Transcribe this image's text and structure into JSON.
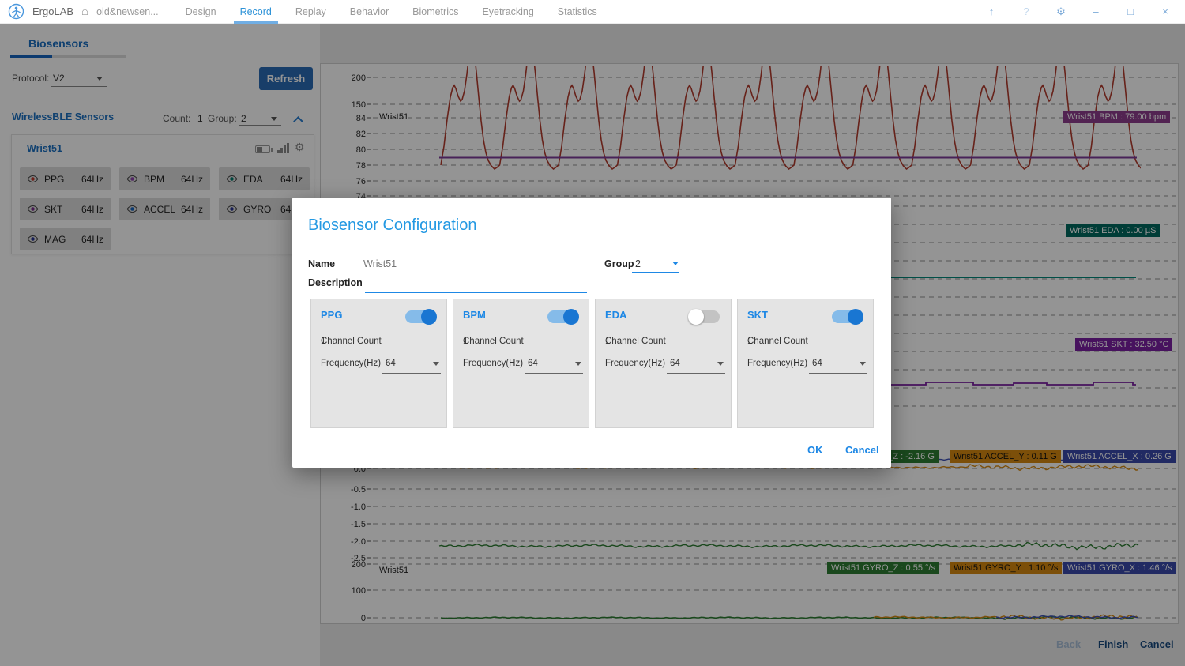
{
  "nav": {
    "app": "ErgoLAB",
    "project": "old&newsen...",
    "tabs": [
      {
        "label": "Design",
        "active": false
      },
      {
        "label": "Record",
        "active": true
      },
      {
        "label": "Replay",
        "active": false
      },
      {
        "label": "Behavior",
        "active": false
      },
      {
        "label": "Biometrics",
        "active": false
      },
      {
        "label": "Eyetracking",
        "active": false
      },
      {
        "label": "Statistics",
        "active": false
      }
    ],
    "window_icons": [
      {
        "name": "upload"
      },
      {
        "name": "help"
      },
      {
        "name": "settings"
      },
      {
        "name": "minimize"
      },
      {
        "name": "maximize"
      },
      {
        "name": "close"
      }
    ],
    "accent_color": "#2e93d8"
  },
  "sidebar": {
    "tab_label": "Biosensors",
    "protocol_label": "Protocol:",
    "protocol_value": "V2",
    "refresh_label": "Refresh",
    "header": {
      "title": "WirelessBLE Sensors",
      "count_label": "Count:",
      "count": "1",
      "group_label": "Group:",
      "group": "2"
    },
    "card": {
      "title": "Wrist51",
      "icons": [
        "battery-icon",
        "signal-icon",
        "gear-icon"
      ],
      "chips": [
        {
          "name": "PPG",
          "freq": "64Hz",
          "color": "#c0392b"
        },
        {
          "name": "BPM",
          "freq": "64Hz",
          "color": "#8e44ad"
        },
        {
          "name": "EDA",
          "freq": "64Hz",
          "color": "#00796b"
        },
        {
          "name": "SKT",
          "freq": "64Hz",
          "color": "#7b2d8e"
        },
        {
          "name": "ACCEL",
          "freq": "64Hz",
          "color": "#1565c0"
        },
        {
          "name": "GYRO",
          "freq": "64Hz",
          "color": "#283593"
        },
        {
          "name": "MAG",
          "freq": "64Hz",
          "color": "#283593"
        }
      ]
    }
  },
  "modal": {
    "title": "Biosensor Configuration",
    "name_label": "Name",
    "name_value": "Wrist51",
    "group_label": "Group",
    "group_value": "2",
    "description_label": "Description",
    "panels": [
      {
        "title": "PPG",
        "enabled": true,
        "channel_count_label": "Channel Count",
        "channel_count_value": "1",
        "frequency_label": "Frequency(Hz)",
        "frequency_value": "64"
      },
      {
        "title": "BPM",
        "enabled": true,
        "channel_count_label": "Channel Count",
        "channel_count_value": "1",
        "frequency_label": "Frequency(Hz)",
        "frequency_value": "64"
      },
      {
        "title": "EDA",
        "enabled": false,
        "channel_count_label": "Channel Count",
        "channel_count_value": "1",
        "frequency_label": "Frequency(Hz)",
        "frequency_value": "64"
      },
      {
        "title": "SKT",
        "enabled": true,
        "channel_count_label": "Channel Count",
        "channel_count_value": "1",
        "frequency_label": "Frequency(Hz)",
        "frequency_value": "64"
      }
    ],
    "ok_label": "OK",
    "cancel_label": "Cancel",
    "accent_color": "#1e88e5"
  },
  "footer": {
    "back": "Back",
    "finish": "Finish",
    "cancel": "Cancel"
  },
  "chart_data": [
    {
      "type": "line",
      "row": "PPG_BPM",
      "label": "Wrist51",
      "y_ticks": [
        "200",
        "150",
        "84",
        "82",
        "80",
        "78",
        "76",
        "74"
      ],
      "series": [
        {
          "name": "PPG",
          "color": "#b23c2e",
          "waveform": "periodic pulse wave, ~12 cycles visible, valleys ~78, peaks clipped above 200"
        },
        {
          "name": "BPM",
          "color": "#7d3c98",
          "value": 79.0
        }
      ],
      "badges": [
        {
          "series": "BPM",
          "text": "Wrist51 BPM : 79.00 bpm",
          "bg": "#8e3d8e",
          "fg": "#ffffff"
        }
      ]
    },
    {
      "type": "line",
      "row": "EDA",
      "series": [
        {
          "name": "EDA",
          "color": "#00897b",
          "value": 0.0
        }
      ],
      "badges": [
        {
          "series": "EDA",
          "text": "Wrist51 EDA : 0.00 µS",
          "bg": "#00695f",
          "fg": "#ffffff"
        }
      ]
    },
    {
      "type": "line",
      "row": "SKT",
      "series": [
        {
          "name": "SKT",
          "color": "#7b1fa2",
          "value": 32.5
        }
      ],
      "badges": [
        {
          "series": "SKT",
          "text": "Wrist51 SKT : 32.50 °C",
          "bg": "#7b1fa2",
          "fg": "#ffffff"
        }
      ]
    },
    {
      "type": "line",
      "row": "ACCEL",
      "y_ticks": [
        "0.0",
        "-0.5",
        "-1.0",
        "-1.5",
        "-2.0",
        "-2.5"
      ],
      "series": [
        {
          "name": "ACCEL_X",
          "color": "#3f51b5",
          "value": 0.26
        },
        {
          "name": "ACCEL_Y",
          "color": "#d68910",
          "value": 0.11
        },
        {
          "name": "ACCEL_Z",
          "color": "#2e7d32",
          "value": -2.16
        }
      ],
      "badges": [
        {
          "series": "ACCEL_Z",
          "text": "Wrist51 ACCEL_Z : -2.16 G",
          "bg": "#2e7d32",
          "fg": "#ffffff"
        },
        {
          "series": "ACCEL_Y",
          "text": "Wrist51 ACCEL_Y : 0.11 G",
          "bg": "#d68910",
          "fg": "#111111"
        },
        {
          "series": "ACCEL_X",
          "text": "Wrist51 ACCEL_X : 0.26 G",
          "bg": "#3949ab",
          "fg": "#ffffff"
        }
      ]
    },
    {
      "type": "line",
      "row": "GYRO",
      "label": "Wrist51",
      "y_ticks": [
        "200",
        "100",
        "0"
      ],
      "series": [
        {
          "name": "GYRO_X",
          "color": "#3f51b5",
          "value": 1.46
        },
        {
          "name": "GYRO_Y",
          "color": "#d68910",
          "value": 1.1
        },
        {
          "name": "GYRO_Z",
          "color": "#2e7d32",
          "value": 0.55
        }
      ],
      "badges": [
        {
          "series": "GYRO_Z",
          "text": "Wrist51 GYRO_Z : 0.55 °/s",
          "bg": "#2e7d32",
          "fg": "#ffffff"
        },
        {
          "series": "GYRO_Y",
          "text": "Wrist51 GYRO_Y : 1.10 °/s",
          "bg": "#d68910",
          "fg": "#111111"
        },
        {
          "series": "GYRO_X",
          "text": "Wrist51 GYRO_X : 1.46 °/s",
          "bg": "#3949ab",
          "fg": "#ffffff"
        }
      ]
    }
  ]
}
